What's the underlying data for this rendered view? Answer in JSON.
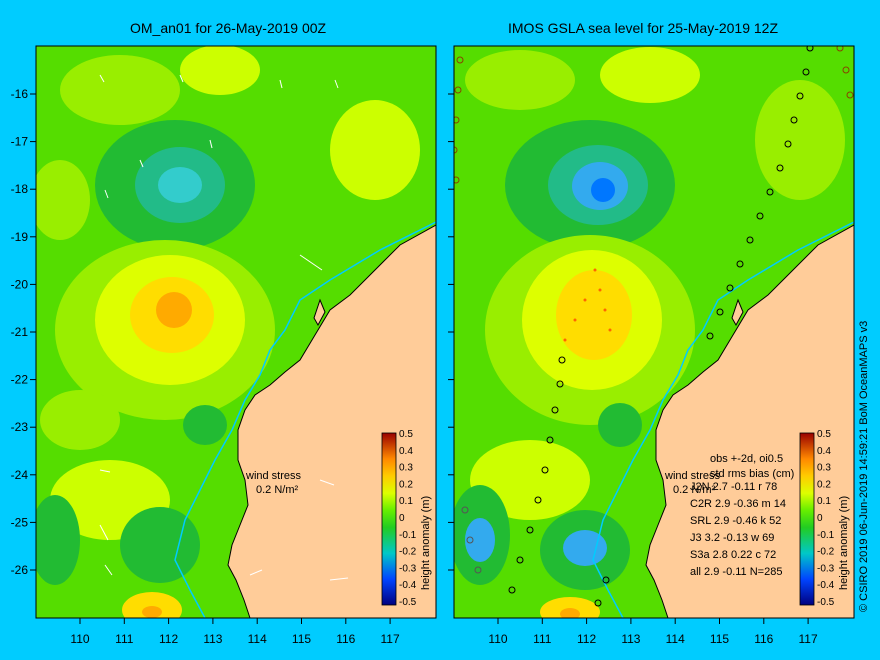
{
  "left_panel": {
    "title": "OM_an01 for 26-May-2019 00Z",
    "wind_label": "wind stress",
    "wind_scale": "0.2 N/m²"
  },
  "right_panel": {
    "title": "IMOS GSLA sea level  for 25-May-2019 12Z",
    "wind_label": "wind stress",
    "wind_scale": "0.2 N/m²",
    "stats_header1": "obs +-2d, oi0.5",
    "stats_header2": "  std rms bias (cm)",
    "stats": [
      "J2N   2.7 -0.11 r 78",
      "C2R   2.9 -0.36 m 14",
      "SRL   2.9 -0.46 k 52",
      "J3    3.2 -0.13 w 69",
      "S3a   2.8 0.22 c 72",
      "all   2.9 -0.11 N=285"
    ]
  },
  "axes": {
    "x_ticks": [
      "110",
      "111",
      "112",
      "113",
      "114",
      "115",
      "116",
      "117"
    ],
    "y_ticks": [
      "-16",
      "-17",
      "-18",
      "-19",
      "-20",
      "-21",
      "-22",
      "-23",
      "-24",
      "-25",
      "-26"
    ]
  },
  "colorbar": {
    "label": "height anomaly (m)",
    "ticks": [
      "0.5",
      "0.4",
      "0.3",
      "0.2",
      "0.1",
      "0",
      "-0.1",
      "-0.2",
      "-0.3",
      "-0.4",
      "-0.5"
    ]
  },
  "credit": "© CSIRO 2019   06-Jun-2019 14:59:21 BoM OceanMAPS v3",
  "colors": {
    "background": "#00ccff",
    "land": "#ffcc99",
    "ocean_base": "#55dd00"
  }
}
